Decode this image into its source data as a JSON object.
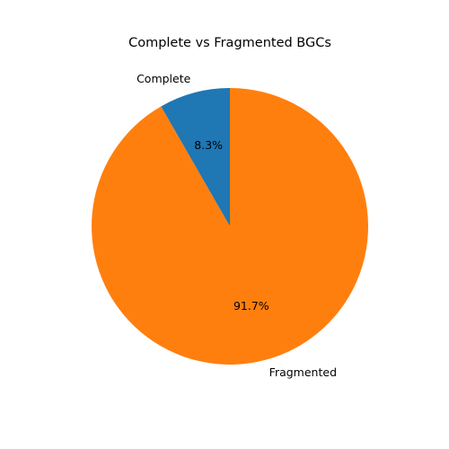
{
  "chart_data": {
    "type": "pie",
    "title": "Complete vs Fragmented BGCs",
    "slices": [
      {
        "label": "Complete",
        "value": 8.3,
        "pct_label": "8.3%",
        "color": "#1f77b4"
      },
      {
        "label": "Fragmented",
        "value": 91.7,
        "pct_label": "91.7%",
        "color": "#ff7f0e"
      }
    ],
    "start_angle_deg": 90,
    "direction": "counterclockwise"
  }
}
